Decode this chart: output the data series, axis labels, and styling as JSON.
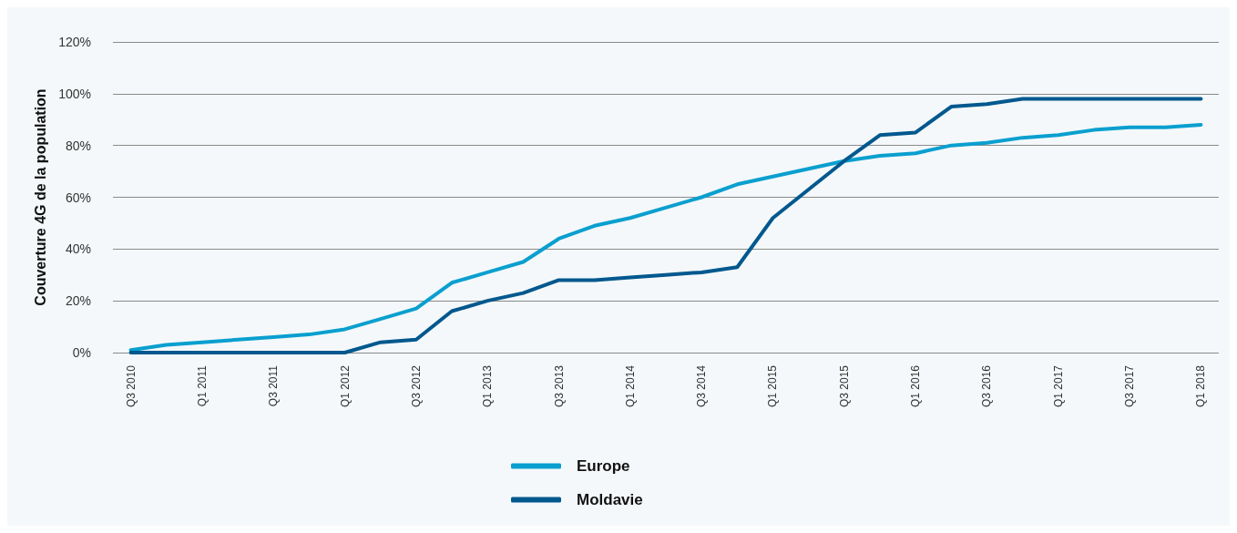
{
  "chart_data": {
    "type": "line",
    "ylabel": "Couverture 4G de la population",
    "categories": [
      "Q3 2010",
      null,
      "Q1 2011",
      null,
      "Q3 2011",
      null,
      "Q1 2012",
      null,
      "Q3 2012",
      null,
      "Q1 2013",
      null,
      "Q3 2013",
      null,
      "Q1 2014",
      null,
      "Q3 2014",
      null,
      "Q1 2015",
      null,
      "Q3 2015",
      null,
      "Q1 2016",
      null,
      "Q3 2016",
      null,
      "Q1 2017",
      null,
      "Q3 2017",
      null,
      "Q1 2018"
    ],
    "series": [
      {
        "name": "Europe",
        "color": "#0a9fcf",
        "values": [
          1,
          3,
          4,
          5,
          6,
          7,
          9,
          13,
          17,
          27,
          31,
          35,
          44,
          49,
          52,
          56,
          60,
          65,
          68,
          71,
          74,
          76,
          77,
          80,
          81,
          83,
          84,
          86,
          87,
          87,
          88
        ]
      },
      {
        "name": "Moldavie",
        "color": "#00588e",
        "values": [
          0,
          0,
          0,
          0,
          0,
          0,
          0,
          4,
          5,
          16,
          20,
          23,
          28,
          28,
          29,
          30,
          31,
          33,
          52,
          63,
          74,
          84,
          85,
          95,
          96,
          98,
          98,
          98,
          98,
          98,
          98
        ]
      }
    ],
    "ylim": [
      0,
      120
    ],
    "yticks": [
      {
        "value": 0,
        "label": "0%"
      },
      {
        "value": 20,
        "label": "20%"
      },
      {
        "value": 40,
        "label": "40%"
      },
      {
        "value": 60,
        "label": "60%"
      },
      {
        "value": 80,
        "label": "80%"
      },
      {
        "value": 100,
        "label": "100%"
      },
      {
        "value": 120,
        "label": "120%"
      }
    ],
    "grid": "y",
    "legend": "bottom",
    "marker": "none",
    "line_style": "solid"
  }
}
